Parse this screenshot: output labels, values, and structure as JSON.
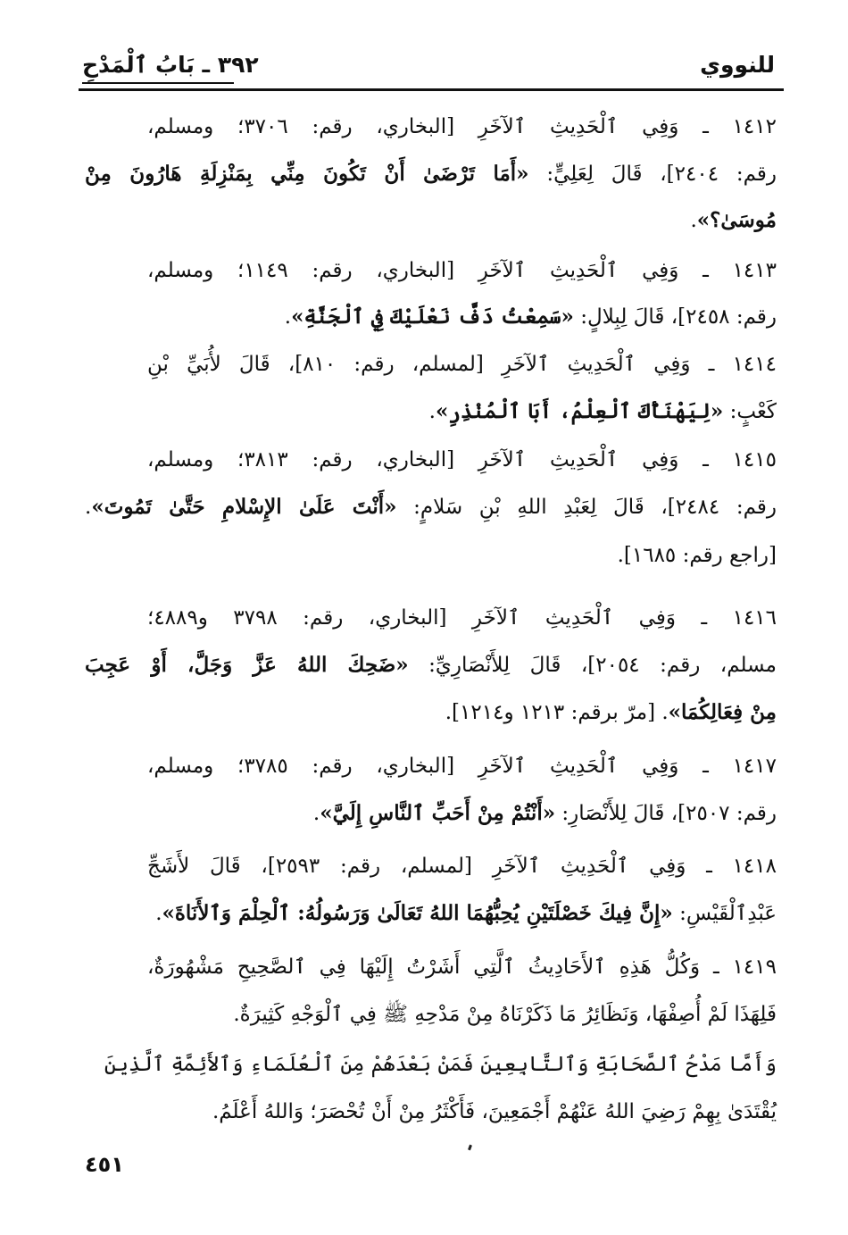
{
  "header": {
    "author": "للنووي",
    "chapter": "٣٩٢ ـ بَابُ ٱلْمَدْحِ"
  },
  "paragraphs": [
    {
      "lines": [
        [
          {
            "t": "١٤١٢ ـ وَفِي ٱلْحَدِيثِ ٱلآخَرِ [البخاري، رقم: ٣٧٠٦؛ ومسلم،",
            "b": false
          }
        ],
        [
          {
            "t": "رقم: ٢٤٠٤]، قَالَ لِعَلِيٍّ: ",
            "b": false
          },
          {
            "t": "«أَمَا تَرْضَىٰ أَنْ تَكُونَ مِنِّي بِمَنْزِلَةِ هَارُونَ مِنْ",
            "b": true
          }
        ],
        [
          {
            "t": "مُوسَىٰ؟»",
            "b": true
          },
          {
            "t": ".",
            "b": false
          }
        ]
      ]
    },
    {
      "lines": [
        [
          {
            "t": "١٤١٣ ـ وَفِي ٱلْحَدِيثِ ٱلآخَرِ [البخاري، رقم: ١١٤٩؛ ومسلم،",
            "b": false
          }
        ],
        [
          {
            "t": "رقم: ٢٤٥٨]، قَالَ لِبِلالٍ: ",
            "b": false
          },
          {
            "t": "«سَمِعْتُ دَفَّ نَعْلَيْكَ فِي ٱلْجَنَّةِ»",
            "b": true
          },
          {
            "t": ".",
            "b": false
          }
        ]
      ]
    },
    {
      "lines": [
        [
          {
            "t": "١٤١٤ ـ وَفِي ٱلْحَدِيثِ ٱلآخَرِ [لمسلم، رقم: ٨١٠]، قَالَ لأُبَيِّ بْنِ",
            "b": false
          }
        ],
        [
          {
            "t": "كَعْبٍ: ",
            "b": false
          },
          {
            "t": "«لِيَهْنَأْكَ ٱلْعِلْمُ، أَبَا ٱلْمُنْذِرِ»",
            "b": true
          },
          {
            "t": ".",
            "b": false
          }
        ]
      ]
    },
    {
      "lines": [
        [
          {
            "t": "١٤١٥ ـ وَفِي ٱلْحَدِيثِ ٱلآخَرِ [البخاري، رقم: ٣٨١٣؛ ومسلم،",
            "b": false
          }
        ],
        [
          {
            "t": "رقم: ٢٤٨٤]، قَالَ لِعَبْدِ اللهِ بْنِ سَلامٍ: ",
            "b": false
          },
          {
            "t": "«أَنْتَ عَلَىٰ الإِسْلامِ حَتَّىٰ تَمُوتَ»",
            "b": true
          },
          {
            "t": ".",
            "b": false
          }
        ],
        [
          {
            "t": "[راجع رقم: ١٦٨٥].",
            "b": false
          }
        ]
      ]
    },
    {
      "lines": [
        [
          {
            "t": "١٤١٦ ـ وَفِي ٱلْحَدِيثِ ٱلآخَرِ [البخاري، رقم: ٣٧٩٨ و٤٨٨٩؛",
            "b": false
          }
        ],
        [
          {
            "t": "مسلم، رقم: ٢٠٥٤]، قَالَ لِلأَنْصَارِيِّ: ",
            "b": false
          },
          {
            "t": "«ضَحِكَ اللهُ عَزَّ وَجَلَّ، أَوْ عَجِبَ",
            "b": true
          }
        ],
        [
          {
            "t": "مِنْ فِعَالِكُمَا»",
            "b": true
          },
          {
            "t": ". [مرّ برقم: ١٢١٣ و١٢١٤].",
            "b": false
          }
        ]
      ]
    },
    {
      "lines": [
        [
          {
            "t": "١٤١٧ ـ وَفِي ٱلْحَدِيثِ ٱلآخَرِ [البخاري، رقم: ٣٧٨٥؛ ومسلم،",
            "b": false
          }
        ],
        [
          {
            "t": "رقم: ٢٥٠٧]، قَالَ لِلأَنْصَارِ: ",
            "b": false
          },
          {
            "t": "«أَنْتُمْ مِنْ أَحَبِّ ٱلنَّاسِ إِلَيَّ»",
            "b": true
          },
          {
            "t": ".",
            "b": false
          }
        ]
      ]
    },
    {
      "lines": [
        [
          {
            "t": "١٤١٨ ـ وَفِي ٱلْحَدِيثِ ٱلآخَرِ [لمسلم، رقم: ٢٥٩٣]، قَالَ لأَشَجِّ",
            "b": false
          }
        ],
        [
          {
            "t": "عَبْدِٱلْقَيْسِ: ",
            "b": false
          },
          {
            "t": "«إِنَّ فِيكَ خَصْلَتَيْنِ يُحِبُّهُمَا اللهُ تَعَالَىٰ وَرَسُولُهُ: ٱلْحِلْمَ وَٱلأَنَاةَ»",
            "b": true
          },
          {
            "t": ".",
            "b": false
          }
        ]
      ]
    },
    {
      "lines": [
        [
          {
            "t": "١٤١٩ ـ وَكُلُّ هَذِهِ ٱلأَحَادِيثُ ٱلَّتِي أَشَرْتُ إِلَيْهَا فِي ٱلصَّحِيحِ مَشْهُورَةٌ،",
            "b": false
          }
        ],
        [
          {
            "t": "فَلِهَذَا لَمْ أُصِفْهَا، وَنَظَائِرُ مَا ذَكَرْنَاهُ مِنْ مَدْحِهِ ﷺ فِي ٱلْوَجْهِ كَثِيرَةٌ.",
            "b": false
          }
        ]
      ]
    },
    {
      "lines": [
        [
          {
            "t": "وَأَمَّا مَدْحُ ٱلصَّحَابَةِ وَٱلتَّابِعِينَ فَمَنْ بَعْدَهُمْ مِنَ ٱلْعُلَمَاءِ وَٱلأَئِمَّةِ ٱلَّذِينَ",
            "b": false
          }
        ],
        [
          {
            "t": "يُقْتَدَىٰ بِهِمْ رَضِيَ اللهُ عَنْهُمْ أَجْمَعِينَ، فَأَكْثَرُ مِنْ أَنْ تُحْصَرَ؛ وَاللهُ أَعْلَمُ.",
            "b": false
          }
        ]
      ]
    }
  ],
  "footer": {
    "page_number": "٤٥١"
  }
}
